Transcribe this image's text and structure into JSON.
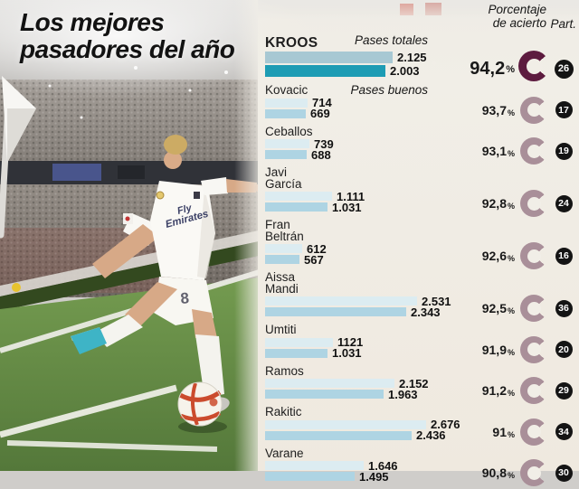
{
  "title": {
    "line1": "Los mejores",
    "line2": "pasadores del año"
  },
  "photo": {
    "description": "soccer-player-taking-corner-kick",
    "shirt_line1": "Fly",
    "shirt_line2": "Emirates",
    "shorts_number": "8"
  },
  "panel": {
    "headers": {
      "accuracy_line1": "Porcentaje",
      "accuracy_line2": "de acierto",
      "part": "Part."
    },
    "legend": {
      "total": "Pases totales",
      "good": "Pases buenos"
    }
  },
  "colors": {
    "bar_total_highlight": "#a7c8d3",
    "bar_good_highlight": "#1d9cb4",
    "bar_total": "#dcecf1",
    "bar_good": "#aed4e3",
    "donut_highlight": "#5d1b3f",
    "donut": "#a98f99",
    "part_badge": "#141414",
    "panel_bg": "#f1eee7"
  },
  "chart_data": {
    "type": "bar",
    "orientation": "horizontal",
    "series_labels": [
      "Pases totales",
      "Pases buenos"
    ],
    "max_value": 2676,
    "percent_sign": "%",
    "players": [
      {
        "name": "KROOS",
        "name_lines": [
          "KROOS"
        ],
        "total": 2125,
        "total_label": "2.125",
        "good": 2003,
        "good_label": "2.003",
        "accuracy_label": "94,2",
        "part": "26",
        "highlight": true
      },
      {
        "name": "Kovacic",
        "name_lines": [
          "Kovacic"
        ],
        "total": 714,
        "total_label": "714",
        "good": 669,
        "good_label": "669",
        "accuracy_label": "93,7",
        "part": "17",
        "highlight": false
      },
      {
        "name": "Ceballos",
        "name_lines": [
          "Ceballos"
        ],
        "total": 739,
        "total_label": "739",
        "good": 688,
        "good_label": "688",
        "accuracy_label": "93,1",
        "part": "19",
        "highlight": false
      },
      {
        "name": "Javi García",
        "name_lines": [
          "Javi",
          "García"
        ],
        "total": 1111,
        "total_label": "1.111",
        "good": 1031,
        "good_label": "1.031",
        "accuracy_label": "92,8",
        "part": "24",
        "highlight": false
      },
      {
        "name": "Fran Beltrán",
        "name_lines": [
          "Fran",
          "Beltrán"
        ],
        "total": 612,
        "total_label": "612",
        "good": 567,
        "good_label": "567",
        "accuracy_label": "92,6",
        "part": "16",
        "highlight": false
      },
      {
        "name": "Aissa Mandi",
        "name_lines": [
          "Aissa",
          "Mandi"
        ],
        "total": 2531,
        "total_label": "2.531",
        "good": 2343,
        "good_label": "2.343",
        "accuracy_label": "92,5",
        "part": "36",
        "highlight": false
      },
      {
        "name": "Umtiti",
        "name_lines": [
          "Umtiti"
        ],
        "total": 1121,
        "total_label": "1121",
        "good": 1031,
        "good_label": "1.031",
        "accuracy_label": "91,9",
        "part": "20",
        "highlight": false
      },
      {
        "name": "Ramos",
        "name_lines": [
          "Ramos"
        ],
        "total": 2152,
        "total_label": "2.152",
        "good": 1963,
        "good_label": "1.963",
        "accuracy_label": "91,2",
        "part": "29",
        "highlight": false
      },
      {
        "name": "Rakitic",
        "name_lines": [
          "Rakitic"
        ],
        "total": 2676,
        "total_label": "2.676",
        "good": 2436,
        "good_label": "2.436",
        "accuracy_label": "91",
        "part": "34",
        "highlight": false
      },
      {
        "name": "Varane",
        "name_lines": [
          "Varane"
        ],
        "total": 1646,
        "total_label": "1.646",
        "good": 1495,
        "good_label": "1.495",
        "accuracy_label": "90,8",
        "part": "30",
        "highlight": false
      }
    ]
  }
}
